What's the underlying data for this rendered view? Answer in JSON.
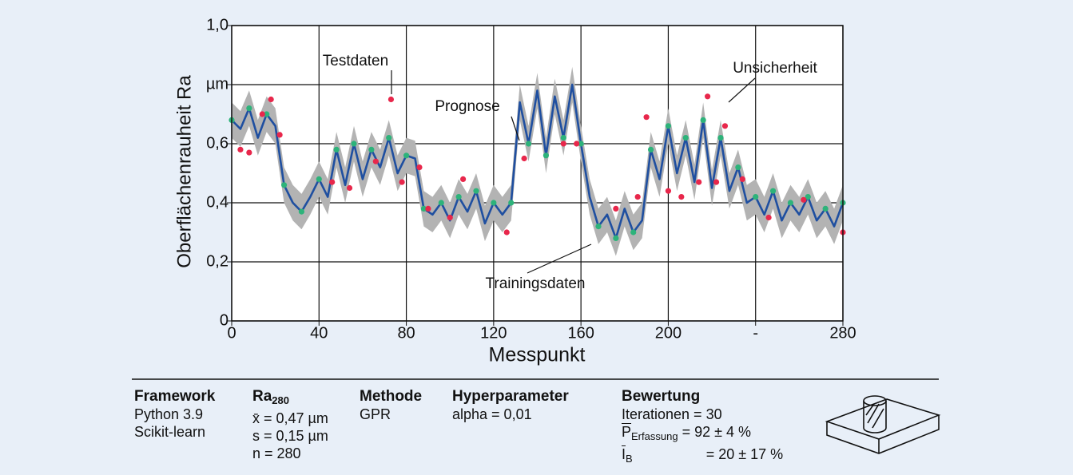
{
  "chart_data": {
    "type": "line",
    "y_label": "Oberflächenrauheit Ra",
    "x_label": "Messpunkt",
    "xlim": [
      0,
      280
    ],
    "ylim": [
      0,
      1
    ],
    "xticks": [
      0,
      40,
      80,
      120,
      160,
      200,
      {
        "value": 240,
        "label": "-"
      },
      280
    ],
    "yticks": [
      0,
      {
        "value": 0.2,
        "label": "0,2"
      },
      {
        "value": 0.4,
        "label": "0,4"
      },
      {
        "value": 0.6,
        "label": "0,6"
      },
      {
        "value": 0.8,
        "label": "µm"
      },
      {
        "value": 1.0,
        "label": "1,0"
      }
    ],
    "grid": true,
    "annotations": [
      "Testdaten",
      "Prognose",
      "Unsicherheit",
      "Trainingsdaten"
    ],
    "series": [
      {
        "color": "#1f4fa0",
        "x": [
          0,
          4,
          8,
          12,
          16,
          20,
          24,
          28,
          32,
          36,
          40,
          44,
          48,
          52,
          56,
          60,
          64,
          68,
          72,
          76,
          80,
          84,
          88,
          92,
          96,
          100,
          104,
          108,
          112,
          116,
          120,
          124,
          128,
          132,
          136,
          140,
          144,
          148,
          152,
          156,
          160,
          164,
          168,
          172,
          176,
          180,
          184,
          188,
          192,
          196,
          200,
          204,
          208,
          212,
          216,
          220,
          224,
          228,
          232,
          236,
          240,
          244,
          248,
          252,
          256,
          260,
          264,
          268,
          272,
          276,
          280
        ],
        "values": [
          0.68,
          0.65,
          0.72,
          0.62,
          0.7,
          0.66,
          0.46,
          0.4,
          0.37,
          0.42,
          0.48,
          0.42,
          0.58,
          0.46,
          0.6,
          0.48,
          0.58,
          0.52,
          0.62,
          0.5,
          0.56,
          0.55,
          0.38,
          0.36,
          0.4,
          0.34,
          0.42,
          0.37,
          0.44,
          0.33,
          0.4,
          0.36,
          0.4,
          0.74,
          0.6,
          0.78,
          0.56,
          0.76,
          0.62,
          0.8,
          0.6,
          0.42,
          0.32,
          0.36,
          0.28,
          0.38,
          0.3,
          0.34,
          0.58,
          0.48,
          0.66,
          0.5,
          0.62,
          0.47,
          0.68,
          0.45,
          0.62,
          0.44,
          0.52,
          0.4,
          0.42,
          0.36,
          0.44,
          0.34,
          0.4,
          0.36,
          0.42,
          0.34,
          0.38,
          0.32,
          0.4
        ]
      }
    ],
    "band": {
      "color": "#b3b3b3",
      "lower": [
        0.62,
        0.59,
        0.66,
        0.56,
        0.64,
        0.6,
        0.4,
        0.34,
        0.31,
        0.36,
        0.42,
        0.36,
        0.52,
        0.4,
        0.54,
        0.42,
        0.52,
        0.46,
        0.56,
        0.44,
        0.5,
        0.49,
        0.32,
        0.3,
        0.34,
        0.28,
        0.36,
        0.31,
        0.38,
        0.27,
        0.34,
        0.3,
        0.34,
        0.68,
        0.54,
        0.72,
        0.5,
        0.7,
        0.56,
        0.74,
        0.54,
        0.36,
        0.26,
        0.3,
        0.22,
        0.32,
        0.24,
        0.28,
        0.52,
        0.42,
        0.6,
        0.44,
        0.56,
        0.41,
        0.62,
        0.39,
        0.56,
        0.38,
        0.46,
        0.34,
        0.36,
        0.3,
        0.38,
        0.28,
        0.34,
        0.3,
        0.36,
        0.28,
        0.32,
        0.26,
        0.34
      ],
      "upper": [
        0.74,
        0.71,
        0.78,
        0.68,
        0.76,
        0.72,
        0.52,
        0.46,
        0.43,
        0.48,
        0.54,
        0.48,
        0.64,
        0.52,
        0.66,
        0.54,
        0.64,
        0.58,
        0.68,
        0.56,
        0.62,
        0.61,
        0.44,
        0.42,
        0.46,
        0.4,
        0.48,
        0.43,
        0.5,
        0.39,
        0.46,
        0.42,
        0.46,
        0.8,
        0.66,
        0.84,
        0.62,
        0.82,
        0.68,
        0.86,
        0.66,
        0.48,
        0.38,
        0.42,
        0.34,
        0.44,
        0.36,
        0.4,
        0.64,
        0.54,
        0.72,
        0.56,
        0.68,
        0.53,
        0.74,
        0.51,
        0.68,
        0.5,
        0.58,
        0.46,
        0.48,
        0.42,
        0.5,
        0.4,
        0.46,
        0.42,
        0.48,
        0.4,
        0.44,
        0.38,
        0.46
      ]
    },
    "training": {
      "color": "#2db37a",
      "x": [
        0,
        8,
        16,
        24,
        32,
        40,
        48,
        56,
        64,
        72,
        80,
        88,
        96,
        104,
        112,
        120,
        128,
        136,
        144,
        152,
        160,
        168,
        176,
        184,
        192,
        200,
        208,
        216,
        224,
        232,
        240,
        248,
        256,
        264,
        272,
        280
      ],
      "values": [
        0.68,
        0.72,
        0.7,
        0.46,
        0.37,
        0.48,
        0.58,
        0.6,
        0.58,
        0.62,
        0.56,
        0.38,
        0.4,
        0.42,
        0.44,
        0.4,
        0.4,
        0.6,
        0.56,
        0.62,
        0.6,
        0.32,
        0.28,
        0.3,
        0.58,
        0.66,
        0.62,
        0.68,
        0.62,
        0.52,
        0.42,
        0.44,
        0.4,
        0.42,
        0.38,
        0.4
      ]
    },
    "test": {
      "color": "#e8274b",
      "x": [
        4,
        8,
        14,
        18,
        22,
        46,
        54,
        66,
        73,
        78,
        86,
        90,
        100,
        106,
        126,
        134,
        152,
        158,
        176,
        186,
        190,
        200,
        206,
        214,
        218,
        222,
        226,
        234,
        246,
        262,
        280
      ],
      "values": [
        0.58,
        0.57,
        0.7,
        0.75,
        0.63,
        0.47,
        0.45,
        0.54,
        0.75,
        0.47,
        0.52,
        0.38,
        0.35,
        0.48,
        0.3,
        0.55,
        0.6,
        0.6,
        0.38,
        0.42,
        0.69,
        0.44,
        0.42,
        0.47,
        0.76,
        0.47,
        0.66,
        0.48,
        0.35,
        0.41,
        0.3
      ]
    }
  },
  "info": {
    "framework": {
      "title": "Framework",
      "lines": [
        "Python 3.9",
        "Scikit-learn"
      ]
    },
    "ra": {
      "title": "Ra",
      "title_sub": "280",
      "lines": [
        "x̄ = 0,47 µm",
        "s = 0,15 µm",
        "n = 280"
      ]
    },
    "methode": {
      "title": "Methode",
      "lines": [
        "GPR"
      ]
    },
    "hyper": {
      "title": "Hyperparameter",
      "lines": [
        "alpha = 0,01"
      ]
    },
    "bewertung": {
      "title": "Bewertung",
      "lines": [
        "Iterationen = 30"
      ],
      "p_symbol": "P",
      "p_sub": "Erfassung",
      "p_value": "= 92 ± 4 %",
      "t_symbol": "I",
      "t_sub": "B",
      "t_value": "= 20 ± 17 %"
    }
  }
}
